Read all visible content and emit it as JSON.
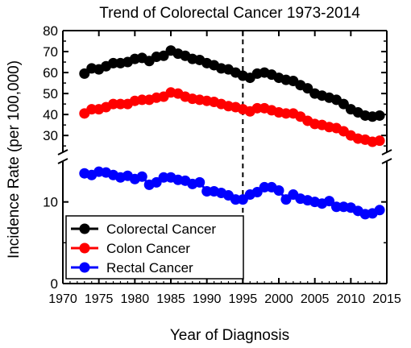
{
  "chart_data": {
    "type": "scatter",
    "title": "Trend of Colorectal Cancer 1973-2014",
    "xlabel": "Year of Diagnosis",
    "ylabel": "Incidence Rate (per 100,000)",
    "xlim": [
      1970,
      2015
    ],
    "x_ticks": [
      "1970",
      "1975",
      "1980",
      "1985",
      "1990",
      "1995",
      "2000",
      "2005",
      "2010",
      "2015"
    ],
    "y_axis": {
      "broken": true,
      "upper": {
        "ylim": [
          22,
          80
        ],
        "ticks": [
          "30",
          "40",
          "50",
          "60",
          "70",
          "80"
        ]
      },
      "lower": {
        "ylim": [
          0,
          15
        ],
        "ticks": [
          "0",
          "10"
        ]
      }
    },
    "grid": false,
    "legend_position": "bottom-left",
    "reference_line": {
      "x": 1995,
      "style": "dashed",
      "color": "#000000"
    },
    "series": [
      {
        "name": "Colorectal Cancer",
        "color": "#000000",
        "x": [
          1973,
          1974,
          1975,
          1976,
          1977,
          1978,
          1979,
          1980,
          1981,
          1982,
          1983,
          1984,
          1985,
          1986,
          1987,
          1988,
          1989,
          1990,
          1991,
          1992,
          1993,
          1994,
          1995,
          1996,
          1997,
          1998,
          1999,
          2000,
          2001,
          2002,
          2003,
          2004,
          2005,
          2006,
          2007,
          2008,
          2009,
          2010,
          2011,
          2012,
          2013,
          2014
        ],
        "values": [
          59.5,
          62,
          61.5,
          63,
          64.5,
          64.5,
          65,
          66.5,
          67,
          65.5,
          67.5,
          68,
          70.5,
          69,
          68,
          66.5,
          66,
          64.5,
          63.5,
          62,
          61.5,
          60,
          58.5,
          57.5,
          59.5,
          60,
          59,
          57.5,
          56.5,
          56,
          54,
          52.5,
          50,
          49,
          48,
          47,
          45,
          42.5,
          41,
          39.5,
          39,
          39.5
        ]
      },
      {
        "name": "Colon Cancer",
        "color": "#ff0000",
        "x": [
          1973,
          1974,
          1975,
          1976,
          1977,
          1978,
          1979,
          1980,
          1981,
          1982,
          1983,
          1984,
          1985,
          1986,
          1987,
          1988,
          1989,
          1990,
          1991,
          1992,
          1993,
          1994,
          1995,
          1996,
          1997,
          1998,
          1999,
          2000,
          2001,
          2002,
          2003,
          2004,
          2005,
          2006,
          2007,
          2008,
          2009,
          2010,
          2011,
          2012,
          2013,
          2014
        ],
        "values": [
          40.5,
          42.5,
          42.5,
          43.5,
          45,
          45,
          45,
          46.5,
          47,
          47,
          48,
          48.5,
          50.5,
          50,
          48.5,
          47.5,
          47,
          46.5,
          46,
          45,
          44,
          43.5,
          42.5,
          41.5,
          43,
          43,
          42,
          41,
          40.5,
          40.5,
          39,
          37,
          35.5,
          35,
          34,
          33.5,
          32,
          30,
          28.5,
          28,
          27,
          27.5
        ]
      },
      {
        "name": "Rectal Cancer",
        "color": "#0000ff",
        "x": [
          1973,
          1974,
          1975,
          1976,
          1977,
          1978,
          1979,
          1980,
          1981,
          1982,
          1983,
          1984,
          1985,
          1986,
          1987,
          1988,
          1989,
          1990,
          1991,
          1992,
          1993,
          1994,
          1995,
          1996,
          1997,
          1998,
          1999,
          2000,
          2001,
          2002,
          2003,
          2004,
          2005,
          2006,
          2007,
          2008,
          2009,
          2010,
          2011,
          2012,
          2013,
          2014
        ],
        "values": [
          13.5,
          13.3,
          13.7,
          13.6,
          13.3,
          13.0,
          13.2,
          12.8,
          13.1,
          12.1,
          12.4,
          13.0,
          13.0,
          12.7,
          12.6,
          12.2,
          12.4,
          11.3,
          11.3,
          11.1,
          10.8,
          10.3,
          10.3,
          10.9,
          11.2,
          11.8,
          11.8,
          11.4,
          10.3,
          10.9,
          10.4,
          10.2,
          10.0,
          9.8,
          10.1,
          9.4,
          9.4,
          9.3,
          8.9,
          8.5,
          8.6,
          9.0
        ]
      }
    ]
  }
}
